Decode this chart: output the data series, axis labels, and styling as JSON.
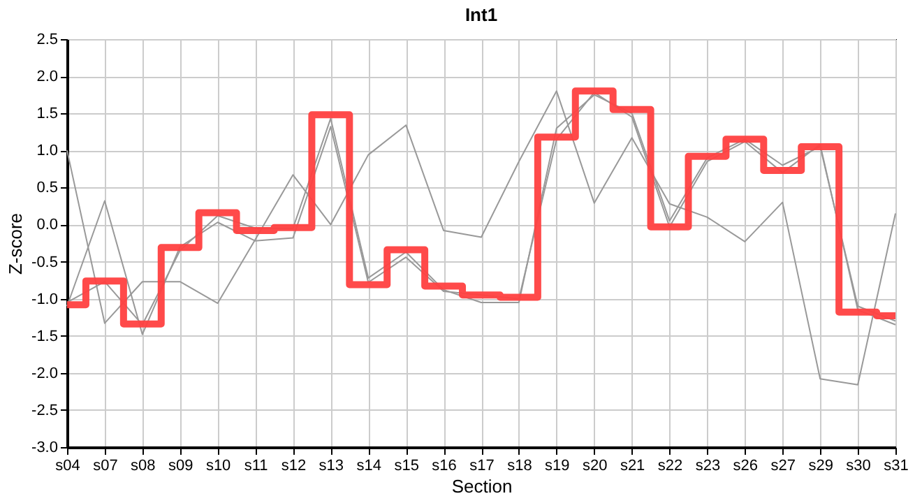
{
  "chart_data": {
    "type": "line",
    "title": "Int1",
    "xlabel": "Section",
    "ylabel": "Z-score",
    "categories": [
      "s04",
      "s07",
      "s08",
      "s09",
      "s10",
      "s11",
      "s12",
      "s13",
      "s14",
      "s15",
      "s16",
      "s17",
      "s18",
      "s19",
      "s20",
      "s21",
      "s22",
      "s23",
      "s26",
      "s27",
      "s29",
      "s30",
      "s31"
    ],
    "series": [
      {
        "color": "#999999",
        "values": [
          1.0,
          -1.33,
          -0.77,
          -0.77,
          -1.06,
          -0.2,
          0.67,
          0.0,
          0.94,
          1.34,
          -0.08,
          -0.17,
          0.85,
          1.8,
          0.29,
          1.17,
          0.28,
          0.1,
          -0.23,
          0.3,
          -2.08,
          -2.16,
          0.15
        ]
      },
      {
        "color": "#999999",
        "values": [
          -1.05,
          -0.77,
          -1.35,
          -0.35,
          0.12,
          -0.05,
          -0.05,
          1.43,
          -0.72,
          -0.37,
          -0.88,
          -1.05,
          -1.05,
          1.3,
          1.75,
          1.5,
          0.05,
          0.9,
          1.15,
          0.8,
          1.05,
          -1.1,
          -1.3
        ]
      },
      {
        "color": "#999999",
        "values": [
          -1.1,
          0.32,
          -1.48,
          -0.3,
          0.03,
          -0.22,
          -0.18,
          1.32,
          -0.78,
          -0.44,
          -0.9,
          -0.95,
          -1.0,
          1.15,
          1.78,
          1.45,
          -0.03,
          0.85,
          1.12,
          0.7,
          1.08,
          -1.15,
          -1.35
        ]
      },
      {
        "color": "#ff4040",
        "type": "step",
        "values": [
          -1.08,
          -0.76,
          -1.34,
          -0.31,
          0.16,
          -0.08,
          -0.04,
          1.48,
          -0.81,
          -0.34,
          -0.83,
          -0.95,
          -0.98,
          1.18,
          1.8,
          1.55,
          -0.03,
          0.92,
          1.15,
          0.73,
          1.05,
          -1.18,
          -1.23
        ]
      }
    ],
    "ylim": [
      -3.0,
      2.5
    ],
    "yticks": [
      {
        "value": -3,
        "label": "-3.0"
      },
      {
        "value": -2.5,
        "label": "-2.5"
      },
      {
        "value": -2,
        "label": "-2.0"
      },
      {
        "value": -1.5,
        "label": "-1.5"
      },
      {
        "value": -1,
        "label": "-1.0"
      },
      {
        "value": -0.5,
        "label": "-0.5"
      },
      {
        "value": 0,
        "label": "0.0"
      },
      {
        "value": 0.5,
        "label": "0.5"
      },
      {
        "value": 1,
        "label": "1.0"
      },
      {
        "value": 1.5,
        "label": "1.5"
      },
      {
        "value": 2,
        "label": "2.0"
      },
      {
        "value": 2.5,
        "label": "2.5"
      }
    ],
    "grid": true
  }
}
